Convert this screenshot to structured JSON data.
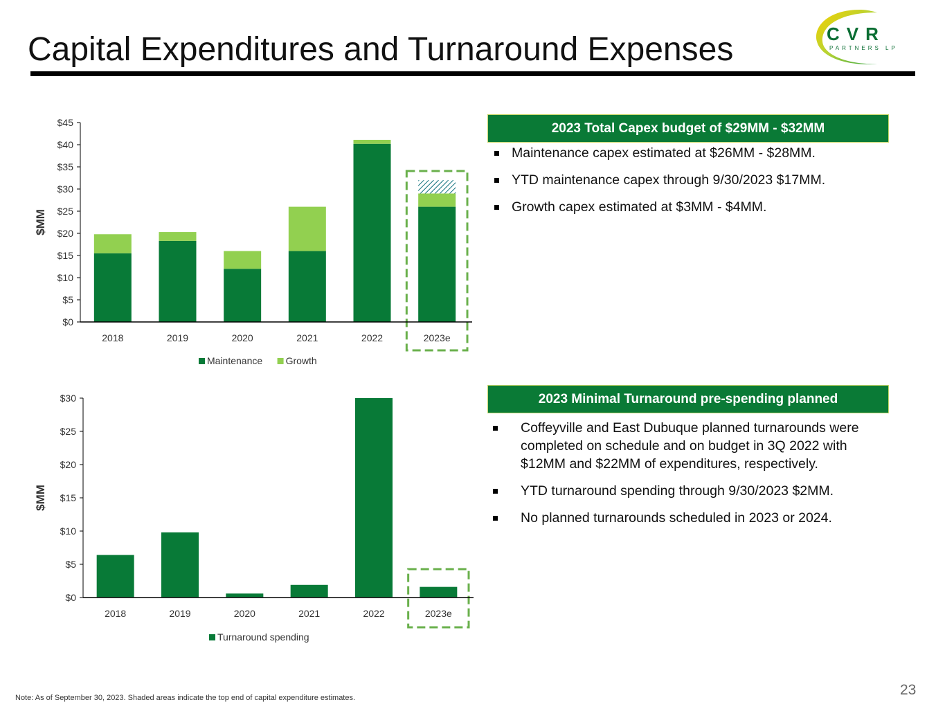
{
  "title": "Capital Expenditures and Turnaround Expenses",
  "logo": {
    "main_text": "CVR",
    "sub_text": "PARTNERS LP"
  },
  "colors": {
    "maintenance": "#087a37",
    "growth": "#92d050",
    "accent_dashed": "#6ab04c",
    "header_bg": "#0a7a36"
  },
  "capex": {
    "header": "2023 Total Capex budget of $29MM - $32MM",
    "bullets": [
      "Maintenance capex estimated at $26MM - $28MM.",
      "YTD maintenance capex through 9/30/2023 $17MM.",
      "Growth capex estimated at $3MM - $4MM."
    ]
  },
  "turnaround": {
    "header": "2023 Minimal Turnaround pre-spending planned",
    "bullets": [
      "Coffeyville and East Dubuque planned turnarounds were completed on schedule and on budget in 3Q 2022 with $12MM and $22MM of expenditures, respectively.",
      "YTD turnaround spending through 9/30/2023 $2MM.",
      "No planned turnarounds scheduled in 2023 or 2024."
    ]
  },
  "chart_data": [
    {
      "type": "bar",
      "stacked": true,
      "title": "",
      "ylabel": "$MM",
      "xlabel": "",
      "ylim": [
        0,
        45
      ],
      "ytick_step": 5,
      "ytick_labels": [
        "$0",
        "$5",
        "$10",
        "$15",
        "$20",
        "$25",
        "$30",
        "$35",
        "$40",
        "$45"
      ],
      "categories": [
        "2018",
        "2019",
        "2020",
        "2021",
        "2022",
        "2023e"
      ],
      "series": [
        {
          "name": "Maintenance",
          "values": [
            15.5,
            18.3,
            12,
            16,
            40.2,
            26
          ]
        },
        {
          "name": "Growth",
          "values": [
            4.3,
            2,
            4,
            10,
            0.9,
            3
          ]
        }
      ],
      "estimate_range_top": {
        "category": "2023e",
        "value": 3
      },
      "highlight_category": "2023e",
      "legend": "bottom"
    },
    {
      "type": "bar",
      "title": "",
      "ylabel": "$MM",
      "xlabel": "",
      "ylim": [
        0,
        30
      ],
      "ytick_step": 5,
      "ytick_labels": [
        "$0",
        "$5",
        "$10",
        "$15",
        "$20",
        "$25",
        "$30"
      ],
      "categories": [
        "2018",
        "2019",
        "2020",
        "2021",
        "2022",
        "2023e"
      ],
      "series": [
        {
          "name": "Turnaround spending",
          "values": [
            6.4,
            9.8,
            0.6,
            1.9,
            30,
            1.6
          ]
        }
      ],
      "highlight_category": "2023e",
      "legend": "bottom"
    }
  ],
  "note": "Note:  As of September 30, 2023. Shaded areas indicate the top end of capital expenditure estimates.",
  "page_number": "23"
}
